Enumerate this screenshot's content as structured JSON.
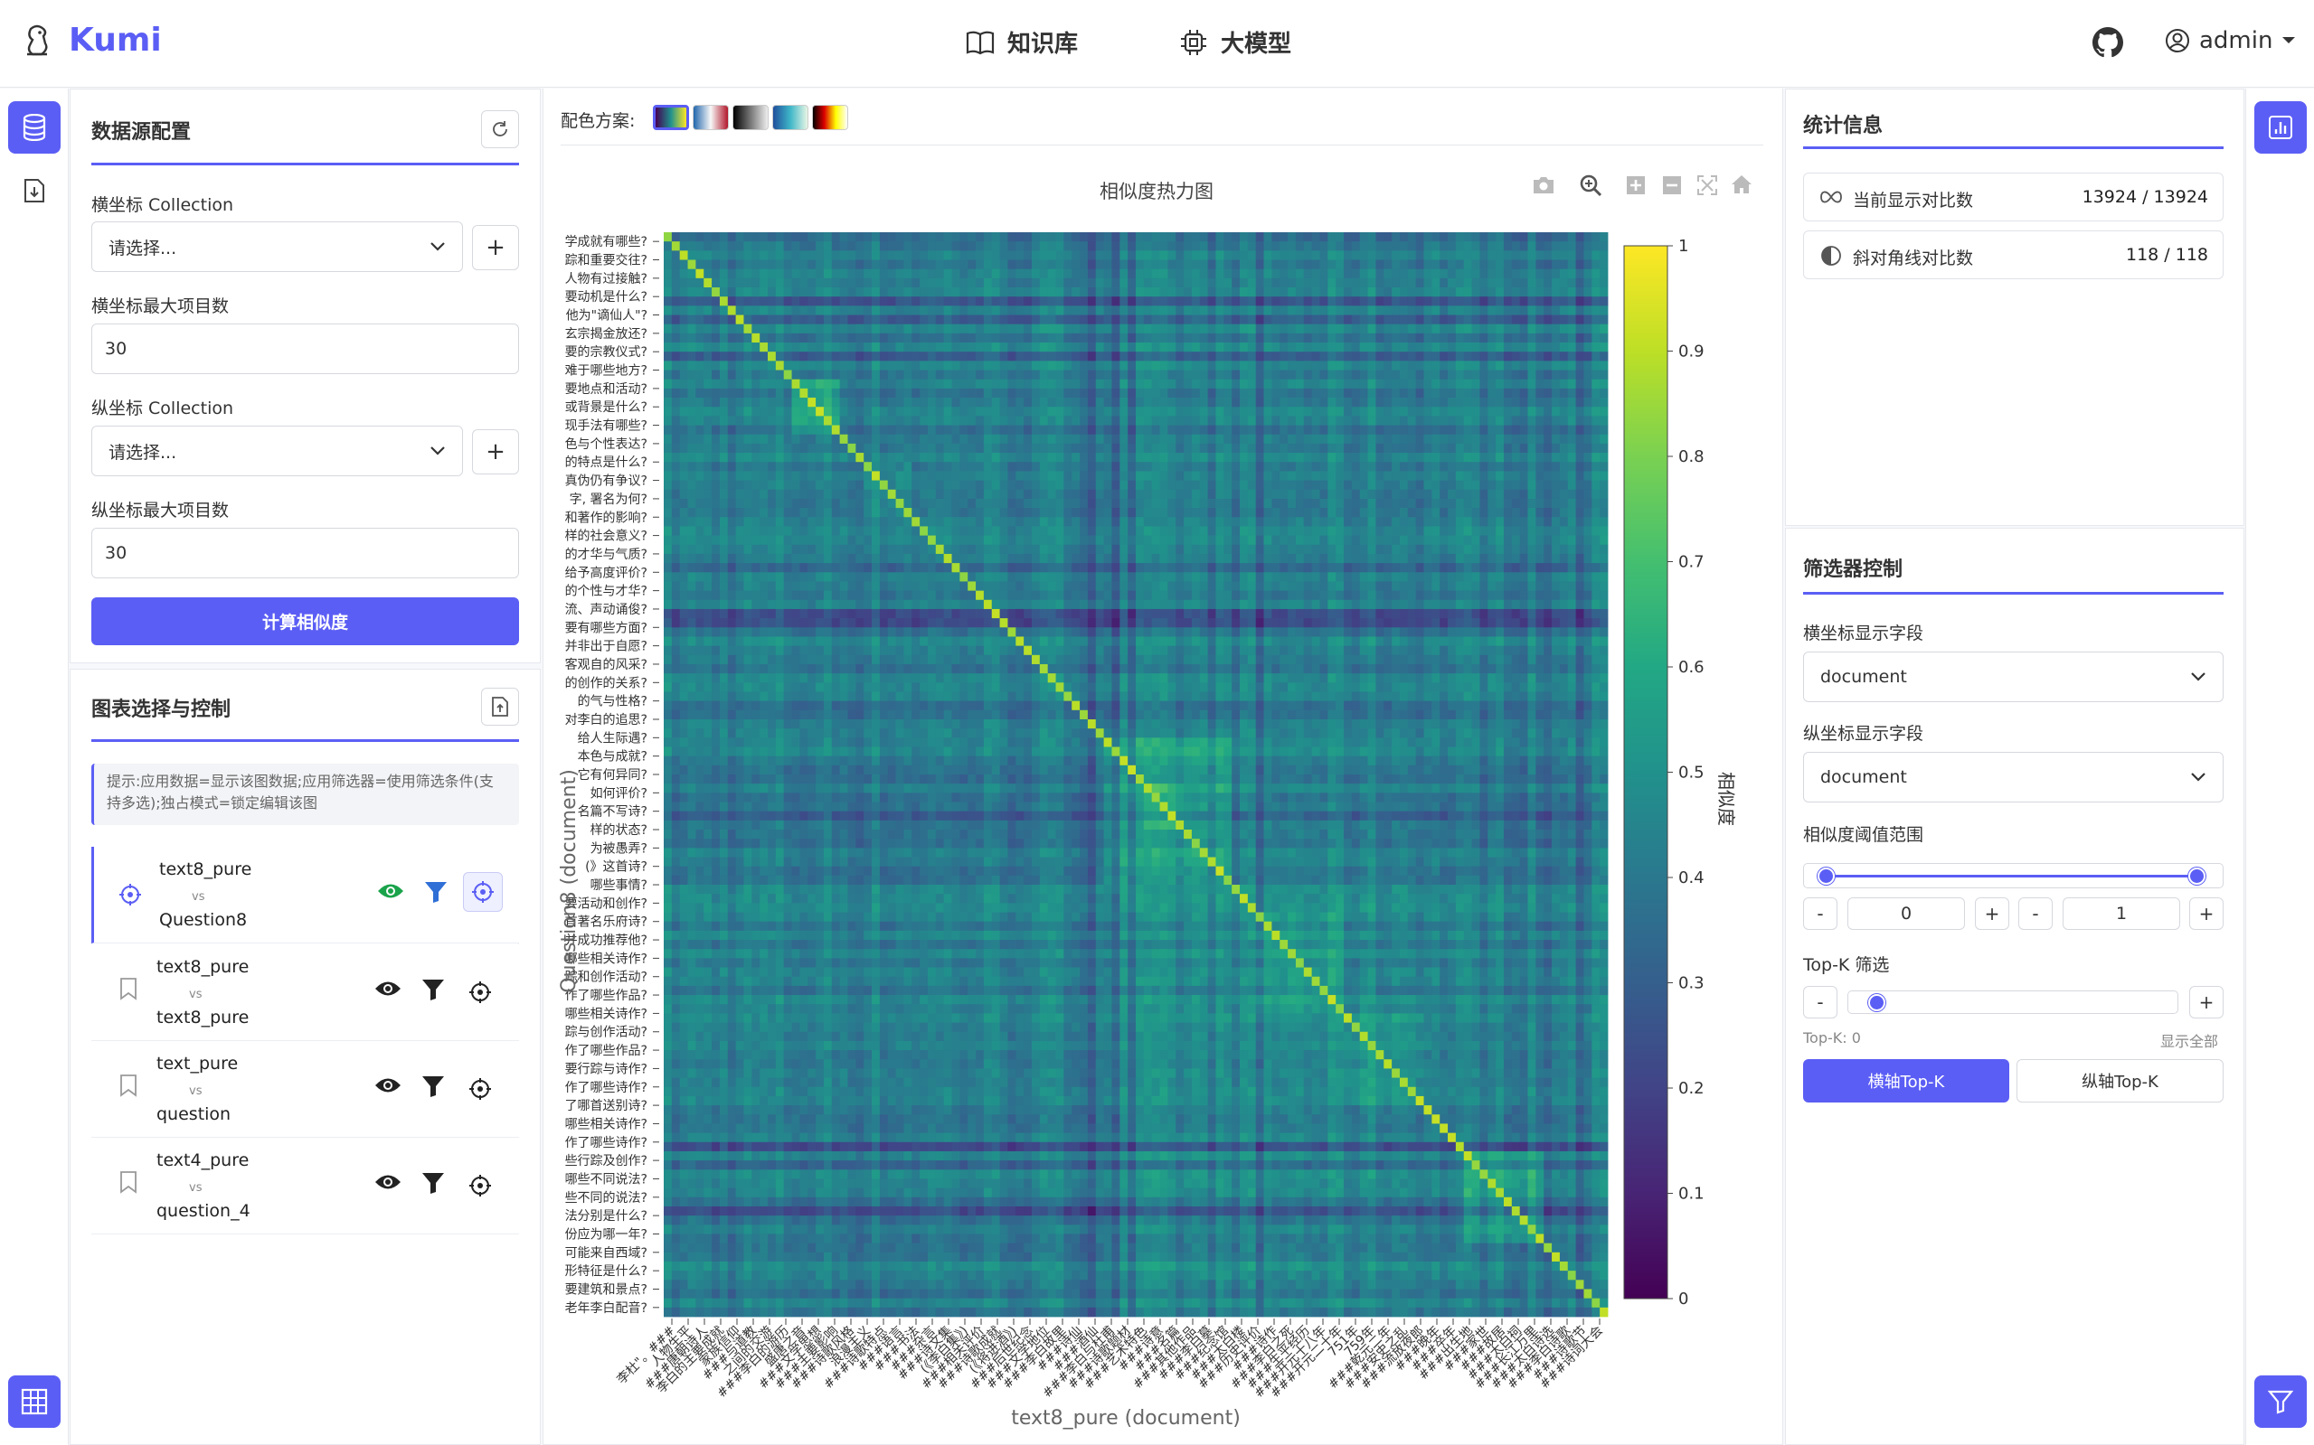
{
  "app": {
    "name": "Kumi"
  },
  "nav": {
    "knowledge_base": "知识库",
    "llm": "大模型",
    "user": "admin"
  },
  "datasource": {
    "title": "数据源配置",
    "x_collection_label": "横坐标 Collection",
    "x_collection_value": "请选择...",
    "x_max_label": "横坐标最大项目数",
    "x_max_value": "30",
    "y_collection_label": "纵坐标 Collection",
    "y_collection_value": "请选择...",
    "y_max_label": "纵坐标最大项目数",
    "y_max_value": "30",
    "compute_button": "计算相似度"
  },
  "charts_panel": {
    "title": "图表选择与控制",
    "hint": "提示:应用数据=显示该图数据;应用筛选器=使用筛选条件(支持多选);独占模式=锁定编辑该图",
    "vs": "vs",
    "items": [
      {
        "a": "text8_pure",
        "b": "Question8",
        "active": true
      },
      {
        "a": "text8_pure",
        "b": "text8_pure",
        "active": false
      },
      {
        "a": "text_pure",
        "b": "question",
        "active": false
      },
      {
        "a": "text4_pure",
        "b": "question_4",
        "active": false
      }
    ]
  },
  "colorscheme": {
    "label": "配色方案:",
    "schemes": [
      "viridis",
      "red-blue",
      "gray",
      "blue-green",
      "hot"
    ],
    "selected": "viridis"
  },
  "chart_data": {
    "type": "heatmap",
    "title": "相似度热力图",
    "xlabel": "text8_pure (document)",
    "ylabel": "Question8 (document)",
    "colorbar_label": "相似度",
    "colorbar_ticks": [
      "1",
      "0.9",
      "0.8",
      "0.7",
      "0.6",
      "0.5",
      "0.4",
      "0.3",
      "0.2",
      "0.1",
      "0"
    ],
    "range": [
      0,
      1
    ],
    "colorscale": "viridis",
    "diagonal_pairs": "118 / 118",
    "y_tick_labels": [
      "学成就有哪些?",
      "踪和重要交往?",
      "人物有过接触?",
      "要动机是什么?",
      "他为\"谪仙人\"?",
      "玄宗揭金放还?",
      "要的宗教仪式?",
      "难于哪些地方?",
      "要地点和活动?",
      "或背景是什么?",
      "现手法有哪些?",
      "色与个性表达?",
      "的特点是什么?",
      "真伪仍有争议?",
      "字, 署名为何?",
      "和著作的影响?",
      "样的社会意义?",
      "的才华与气质?",
      "给予高度评价?",
      "的个性与才华?",
      "流、声动诵俊?",
      "要有哪些方面?",
      "并非出于自愿?",
      "客观自的风采?",
      "的创作的关系?",
      "的气与性格?",
      "对李白的追思?",
      "给人生际遇?",
      "本色与成就?",
      "它有何异同?",
      "如何评价?",
      "名篇不写诗?",
      "样的状态?",
      "为被愚弄?",
      "(》这首诗?",
      "哪些事情?",
      "要活动和创作?",
      "首著名乐府诗?",
      "并成功推荐他?",
      "哪些相关诗作?",
      "踪和创作活动?",
      "作了哪些作品?",
      "哪些相关诗作?",
      "踪与创作活动?",
      "作了哪些作品?",
      "要行踪与诗作?",
      "作了哪些诗作?",
      "了哪首送别诗?",
      "哪些相关诗作?",
      "作了哪些诗作?",
      "些行踪及创作?",
      "哪些不同说法?",
      "些不同的说法?",
      "法分别是什么?",
      "份应为哪一年?",
      "可能来自西域?",
      "形特征是什么?",
      "要建筑和景点?",
      "老年李白配音?"
    ],
    "x_tick_labels": [
      "李杜\"。###",
      "人物生平",
      "###唐朝诗人",
      "李白的主要成就",
      "家族信仰",
      "###与道教",
      "之间的交游",
      "###李白的游历",
      "盛唐之音",
      "###文学思想",
      "###主要影响",
      "###诗歌风格",
      "浪漫主义",
      "###诗歌特点",
      "###语言",
      "###书法",
      "###杂言",
      "###诗文集",
      "(《李白集》)",
      "###相关评价",
      "###诗歌成就",
      "(《将进酒》)",
      "###后世纪念",
      "###文学地位",
      "###李白故里",
      "###诗仙",
      "###酒仙",
      "###李白与杜甫",
      "###诗歌题材",
      "###艺术特色",
      "###诗意",
      "###名篇",
      "###其他作品",
      "###李白墓",
      "###纪念馆",
      "###太白楼",
      "###历史评价",
      "###诗作",
      "###李白之死",
      "###生平经历",
      "###开元十八年",
      "###开元二十年",
      "751年",
      "759年",
      "###乾元二年",
      "###安史之乱",
      "###流放夜郎",
      "###晚年",
      "###卒年",
      "###出生地",
      "###家世",
      "###故居",
      "###太白祠",
      "###长江万里",
      "###太白诗选",
      "###李白诗歌",
      "###诗歌节",
      "###诗词大会"
    ]
  },
  "toolbar_icons": [
    "camera-icon",
    "zoom-icon",
    "zoom-in-icon",
    "zoom-out-icon",
    "autoscale-icon",
    "home-icon"
  ],
  "stats": {
    "title": "统计信息",
    "current_label": "当前显示对比数",
    "current_value": "13924 / 13924",
    "diagonal_label": "斜对角线对比数",
    "diagonal_value": "118 / 118"
  },
  "filters": {
    "title": "筛选器控制",
    "x_field_label": "横坐标显示字段",
    "x_field_value": "document",
    "y_field_label": "纵坐标显示字段",
    "y_field_value": "document",
    "threshold_label": "相似度阈值范围",
    "threshold_min": "0",
    "threshold_max": "1",
    "topk_label": "Top-K 筛选",
    "topk_value_text": "Top-K: 0",
    "topk_show_all": "显示全部",
    "topk_x_button": "横轴Top-K",
    "topk_y_button": "纵轴Top-K",
    "minus": "-",
    "plus": "+"
  },
  "colors": {
    "accent": "#5b5ef4",
    "eye_active": "#1aa34a",
    "filter_active": "#2f6fd6"
  }
}
